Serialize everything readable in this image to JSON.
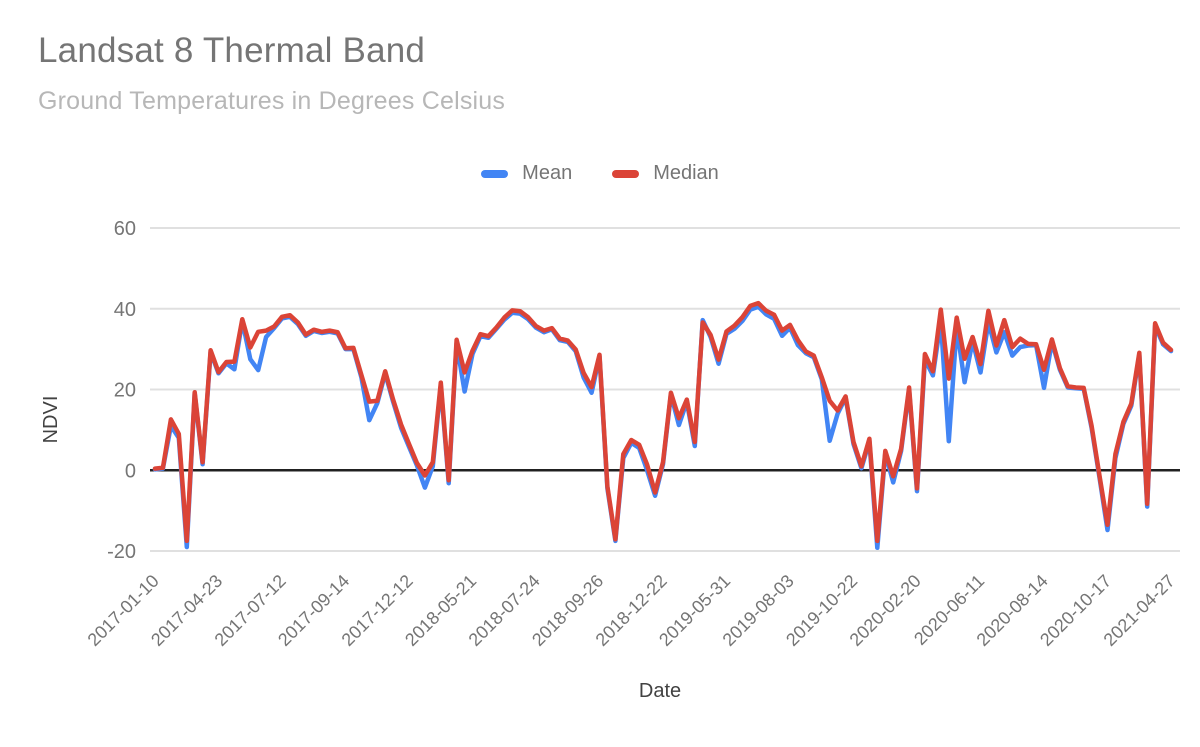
{
  "header": {
    "title": "Landsat 8 Thermal Band",
    "subtitle": "Ground Temperatures in Degrees Celsius"
  },
  "legend": {
    "items": [
      {
        "label": "Mean",
        "color": "#4285f4"
      },
      {
        "label": "Median",
        "color": "#db4437"
      }
    ]
  },
  "colors": {
    "grid_line": "#e0e0e0",
    "zero_line": "#212121",
    "tick_label": "#757575",
    "axis_title": "#424242",
    "mean_line": "#4285f4",
    "median_line": "#db4437"
  },
  "chart_data": {
    "type": "line",
    "title": "Landsat 8 Thermal Band",
    "subtitle": "Ground Temperatures in Degrees Celsius",
    "xlabel": "Date",
    "ylabel": "NDVI",
    "ylim": [
      -20,
      60
    ],
    "yticks": [
      60,
      40,
      20,
      0,
      -20
    ],
    "grid": "horizontal",
    "legend_position": "top-center",
    "x_tick_every": 8,
    "xticklabels": [
      "2017-01-10",
      "2017-04-23",
      "2017-07-12",
      "2017-09-14",
      "2017-12-12",
      "2018-05-21",
      "2018-07-24",
      "2018-09-26",
      "2018-12-22",
      "2019-05-31",
      "2019-08-03",
      "2019-10-22",
      "2020-02-20",
      "2020-06-11",
      "2020-08-14",
      "2020-10-17",
      "2021-04-27"
    ],
    "series": [
      {
        "name": "Mean",
        "color": "#4285f4",
        "values": [
          0.2,
          0.4,
          11.0,
          8.0,
          -19.0,
          19.0,
          1.5,
          29.3,
          24.0,
          26.5,
          25.0,
          37.0,
          27.5,
          24.8,
          33.0,
          35.2,
          37.6,
          38.0,
          36.2,
          33.3,
          34.5,
          34.0,
          34.3,
          33.9,
          30.0,
          30.0,
          23.0,
          12.4,
          16.6,
          24.0,
          17.0,
          10.5,
          5.8,
          1.2,
          -4.3,
          1.0,
          21.0,
          -3.2,
          31.5,
          19.5,
          28.8,
          33.2,
          32.8,
          35.0,
          37.3,
          39.0,
          38.8,
          37.4,
          35.3,
          34.2,
          34.9,
          32.2,
          31.8,
          29.5,
          23.0,
          19.2,
          28.2,
          -4.5,
          -17.5,
          3.0,
          6.8,
          5.5,
          0.0,
          -6.3,
          1.5,
          18.8,
          11.2,
          17.0,
          6.0,
          37.2,
          33.0,
          26.4,
          33.8,
          35.0,
          37.0,
          39.8,
          40.5,
          38.6,
          37.5,
          33.3,
          35.3,
          31.0,
          29.0,
          28.0,
          22.5,
          7.3,
          14.0,
          18.0,
          6.5,
          0.5,
          7.2,
          -19.2,
          4.3,
          -3.0,
          4.8,
          19.9,
          -5.2,
          27.5,
          23.5,
          37.0,
          7.2,
          35.5,
          21.8,
          32.0,
          24.2,
          36.7,
          29.2,
          34.2,
          28.4,
          30.5,
          30.9,
          31.0,
          20.4,
          31.8,
          24.9,
          20.5,
          20.3,
          20.2,
          10.5,
          -2.0,
          -14.8,
          3.0,
          11.5,
          16.0,
          28.6,
          -9.0,
          35.8,
          31.2,
          29.5
        ]
      },
      {
        "name": "Median",
        "color": "#db4437",
        "values": [
          0.4,
          0.6,
          12.6,
          9.0,
          -17.5,
          19.3,
          2.0,
          29.7,
          24.3,
          26.8,
          26.9,
          37.4,
          30.4,
          34.3,
          34.6,
          35.6,
          38.0,
          38.4,
          36.6,
          33.6,
          34.8,
          34.3,
          34.6,
          34.2,
          30.2,
          30.3,
          23.6,
          17.0,
          17.2,
          24.5,
          17.5,
          11.3,
          6.5,
          1.8,
          -1.3,
          2.0,
          21.7,
          -2.5,
          32.3,
          24.2,
          29.6,
          33.7,
          33.2,
          35.3,
          37.8,
          39.6,
          39.4,
          37.9,
          35.7,
          34.6,
          35.2,
          32.6,
          32.1,
          29.9,
          24.1,
          20.6,
          28.6,
          -4.0,
          -17.1,
          4.0,
          7.5,
          6.3,
          1.4,
          -5.5,
          2.0,
          19.2,
          12.9,
          17.5,
          7.0,
          36.6,
          33.5,
          27.4,
          34.4,
          35.8,
          37.9,
          40.7,
          41.4,
          39.5,
          38.5,
          34.6,
          36.0,
          32.2,
          29.4,
          28.4,
          23.0,
          17.2,
          14.8,
          18.3,
          7.0,
          1.0,
          7.8,
          -17.5,
          4.8,
          -1.5,
          5.3,
          20.5,
          -4.5,
          28.8,
          24.5,
          39.8,
          22.7,
          37.8,
          27.6,
          33.0,
          26.3,
          39.5,
          30.9,
          37.2,
          30.5,
          32.6,
          31.3,
          31.2,
          24.9,
          32.4,
          25.3,
          20.8,
          20.5,
          20.4,
          11.0,
          -1.5,
          -13.5,
          4.0,
          12.0,
          16.5,
          29.1,
          -8.3,
          36.4,
          31.6,
          29.8
        ]
      }
    ]
  }
}
